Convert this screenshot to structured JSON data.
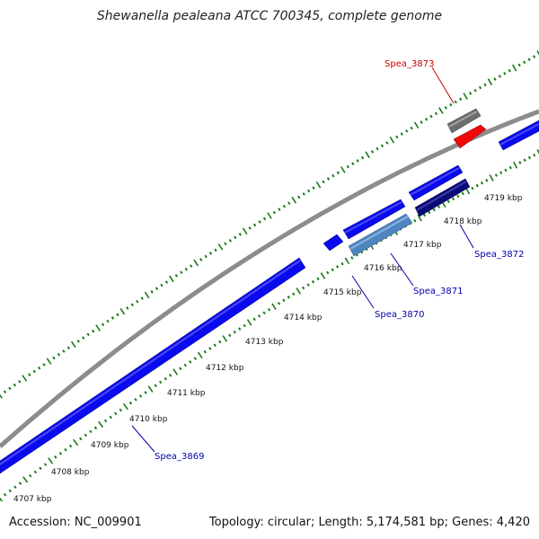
{
  "title": "Shewanella pealeana ATCC 700345, complete genome",
  "footer": {
    "accession": "Accession: NC_009901",
    "summary": "Topology: circular; Length: 5,174,581 bp; Genes: 4,420"
  },
  "colors": {
    "backbone": "#8c8c8c",
    "tick": "#1a7a1a",
    "gene_blue": "#0a0aee",
    "gene_navy": "#0a0a78",
    "gene_light": "#4f86c0",
    "gene_red": "#ee0a0a",
    "gene_grey": "#6e6e6e",
    "label_blue": "#0000aa",
    "label_red": "#cc0000"
  },
  "tick_labels": [
    "4707 kbp",
    "4708 kbp",
    "4709 kbp",
    "4710 kbp",
    "4711 kbp",
    "4712 kbp",
    "4713 kbp",
    "4714 kbp",
    "4715 kbp",
    "4716 kbp",
    "4717 kbp",
    "4718 kbp",
    "4719 kbp"
  ],
  "gene_labels": [
    {
      "text": "Spea_3873",
      "color": "red"
    },
    {
      "text": "Spea_3872",
      "color": "blue"
    },
    {
      "text": "Spea_3871",
      "color": "blue"
    },
    {
      "text": "Spea_3870",
      "color": "blue"
    },
    {
      "text": "Spea_3869",
      "color": "blue"
    }
  ]
}
